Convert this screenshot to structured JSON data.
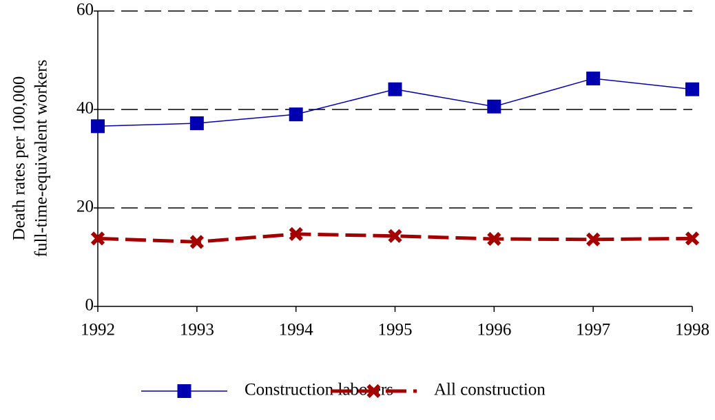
{
  "chart_data": {
    "type": "line",
    "ylabel": [
      "Death rates per 100,000",
      "full-time-equivalent workers"
    ],
    "categories": [
      "1992",
      "1993",
      "1994",
      "1995",
      "1996",
      "1997",
      "1998"
    ],
    "series": [
      {
        "name": "Construction laborers",
        "color": "#0000b0",
        "marker": "square",
        "linestyle": "solid",
        "values": [
          36.6,
          37.2,
          39.0,
          44.1,
          40.6,
          46.3,
          44.1
        ]
      },
      {
        "name": "All construction",
        "color": "#a50000",
        "marker": "x",
        "linestyle": "dashed",
        "values": [
          13.8,
          13.1,
          14.7,
          14.3,
          13.7,
          13.6,
          13.8
        ]
      }
    ],
    "ylim": [
      0,
      60
    ],
    "yticks": [
      0,
      20,
      40,
      60
    ],
    "grid": true
  }
}
